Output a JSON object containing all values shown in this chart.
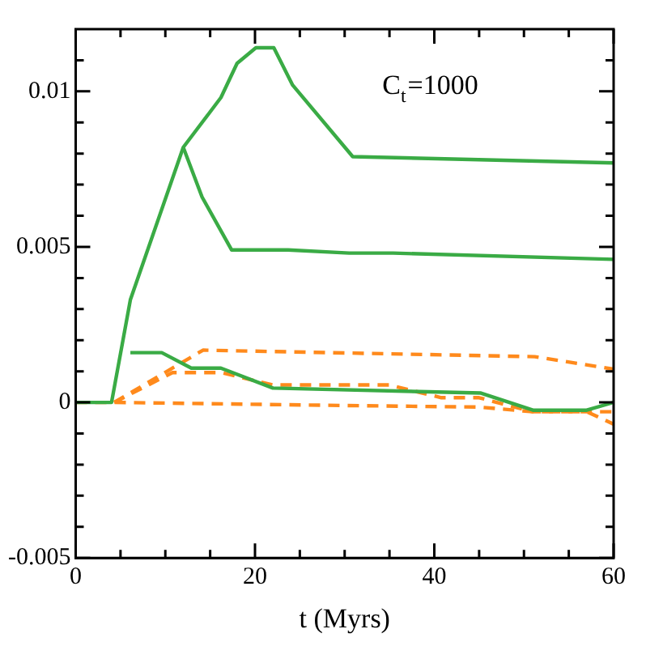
{
  "chart_data": {
    "type": "line",
    "xlabel": "t (Myrs)",
    "annotations": [
      "C$_{t}$=1000"
    ],
    "xlim": [
      0,
      60
    ],
    "xticks": [
      0,
      {
        "value": 5,
        "label": null
      },
      {
        "value": 10,
        "label": null
      },
      {
        "value": 15,
        "label": null
      },
      20,
      {
        "value": 25,
        "label": null
      },
      {
        "value": 30,
        "label": null
      },
      {
        "value": 35,
        "label": null
      },
      40,
      {
        "value": 45,
        "label": null
      },
      {
        "value": 50,
        "label": null
      },
      {
        "value": 55,
        "label": null
      },
      60
    ],
    "ylim": [
      -0.005,
      0.012
    ],
    "yticks": [
      -0.005,
      {
        "value": -0.004,
        "label": null
      },
      {
        "value": -0.003,
        "label": null
      },
      {
        "value": -0.002,
        "label": null
      },
      {
        "value": -0.001,
        "label": null
      },
      0,
      {
        "value": 0.001,
        "label": null
      },
      {
        "value": 0.002,
        "label": null
      },
      {
        "value": 0.003,
        "label": null
      },
      {
        "value": 0.004,
        "label": null
      },
      0.005,
      {
        "value": 0.006,
        "label": null
      },
      {
        "value": 0.007,
        "label": null
      },
      {
        "value": 0.008,
        "label": null
      },
      {
        "value": 0.009,
        "label": null
      },
      0.01,
      {
        "value": 0.011,
        "label": null
      }
    ],
    "grid": false,
    "legend": false,
    "marker": "none",
    "series": [
      {
        "color": "#3aab45",
        "line_style": "solid",
        "x": [
          0,
          4,
          6.1,
          12,
          16.2,
          18,
          20.1,
          22.1,
          24.2,
          30.9,
          60
        ],
        "values": [
          0,
          0,
          0.0033,
          0.0082,
          0.0098,
          0.0109,
          0.0114,
          0.0114,
          0.0102,
          0.0079,
          0.0077
        ]
      },
      {
        "color": "#3aab45",
        "line_style": "solid",
        "x": [
          12,
          14.1,
          17.4,
          23.7,
          30.5,
          35.4,
          60
        ],
        "values": [
          0.0082,
          0.0066,
          0.0049,
          0.0049,
          0.0048,
          0.0048,
          0.0046
        ]
      },
      {
        "color": "#3aab45",
        "line_style": "solid",
        "x": [
          6.1,
          9.6,
          12.9,
          16.2,
          22,
          45.2,
          51,
          57,
          60
        ],
        "values": [
          0.0016,
          0.0016,
          0.0011,
          0.0011,
          0.00046,
          0.0003,
          -0.00025,
          -0.00025,
          0
        ]
      },
      {
        "color": "#ff8a1c",
        "line_style": "dashed",
        "x": [
          4.3,
          14.2,
          51.2,
          60
        ],
        "values": [
          0,
          0.00168,
          0.00147,
          0.00107
        ]
      },
      {
        "color": "#ff8a1c",
        "line_style": "dashed",
        "x": [
          4.3,
          10.8,
          16.2,
          22,
          35,
          40.8,
          45,
          51,
          57,
          60
        ],
        "values": [
          0,
          0.00096,
          0.00096,
          0.00056,
          0.00056,
          0.00015,
          0.00015,
          -0.0003,
          -0.0003,
          -0.0007
        ]
      },
      {
        "color": "#ff8a1c",
        "line_style": "dashed",
        "x": [
          0,
          4.3,
          30,
          45,
          51,
          60
        ],
        "values": [
          0,
          0,
          -0.0001,
          -0.00015,
          -0.0003,
          -0.0003
        ]
      }
    ]
  }
}
